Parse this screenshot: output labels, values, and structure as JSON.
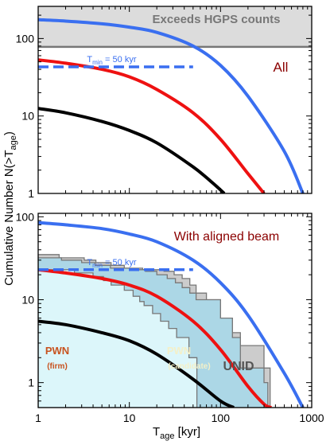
{
  "figure": {
    "ylabel": "Cumulative Number N(>T",
    "ylabel_sub": "age",
    "ylabel_tail": ")",
    "xlabel": "T",
    "xlabel_sub": "age",
    "xlabel_tail": " [kyr]"
  },
  "colors": {
    "blue": "#3a6ff0",
    "red": "#ee1111",
    "black": "#000000",
    "gray_band": "#dcdcdc",
    "gray_line": "#777777",
    "pwn_firm_fill": "#dcf6fa",
    "pwn_cand_fill": "#acd7e6",
    "unid_fill": "#cccccc",
    "text_dark_red": "#8b0000",
    "text_orange": "#c8521e",
    "text_pale": "#f4f0c8"
  },
  "chart_data": [
    {
      "type": "line",
      "panel": "top",
      "annotation_main": "All",
      "xscale": "log",
      "yscale": "log",
      "xlim": [
        1,
        1000
      ],
      "ylim": [
        1,
        260
      ],
      "x_ticks": [],
      "y_ticks": [
        {
          "value": 1,
          "label": "1"
        },
        {
          "value": 10,
          "label": "10"
        },
        {
          "value": 100,
          "label": "100"
        }
      ],
      "hgps": {
        "value": 78,
        "label": "Exceeds HGPS counts"
      },
      "tmin": {
        "label_main": "T",
        "label_sub": "min",
        "label_tail": " = 50 kyr",
        "x_end": 50,
        "y": 43
      },
      "series": [
        {
          "color": "blue",
          "x": [
            1,
            2,
            5,
            10,
            20,
            50,
            100,
            200,
            500,
            800
          ],
          "y": [
            175,
            168,
            155,
            140,
            120,
            80,
            45,
            18,
            3.5,
            1
          ]
        },
        {
          "color": "red",
          "x": [
            1,
            2,
            5,
            10,
            20,
            50,
            100,
            200,
            300
          ],
          "y": [
            53,
            48,
            40,
            32,
            22,
            11,
            5,
            1.8,
            1
          ]
        },
        {
          "color": "black",
          "x": [
            1,
            2,
            5,
            10,
            20,
            50,
            80,
            110
          ],
          "y": [
            12.5,
            11,
            8.5,
            6.5,
            4.5,
            2.2,
            1.4,
            1
          ]
        }
      ]
    },
    {
      "type": "line",
      "panel": "bottom",
      "annotation_main": "With aligned beam",
      "xscale": "log",
      "yscale": "log",
      "xlim": [
        1,
        1000
      ],
      "ylim": [
        0.5,
        110
      ],
      "x_ticks": [
        {
          "value": 1,
          "label": "1"
        },
        {
          "value": 10,
          "label": "10"
        },
        {
          "value": 100,
          "label": "100"
        },
        {
          "value": 1000,
          "label": "1000"
        }
      ],
      "y_ticks": [
        {
          "value": 1,
          "label": "1"
        },
        {
          "value": 10,
          "label": "10"
        },
        {
          "value": 100,
          "label": "100"
        }
      ],
      "tmin": {
        "label_main": "T",
        "label_sub": "min",
        "label_tail": " = 50 kyr",
        "x_end": 50,
        "y": 23
      },
      "regions": {
        "pwn_firm": {
          "label_main": "PWN",
          "label_sub": "(firm)"
        },
        "pwn_candidate": {
          "label_main": "PWN",
          "label_sub": "(candidate)"
        },
        "unid": {
          "label": "UNID"
        }
      },
      "series": [
        {
          "color": "blue",
          "x": [
            1,
            2,
            5,
            10,
            20,
            50,
            100,
            200,
            500,
            800
          ],
          "y": [
            85,
            80,
            72,
            62,
            50,
            30,
            16,
            6.5,
            1.3,
            0.5
          ]
        },
        {
          "color": "red",
          "x": [
            1,
            2,
            5,
            10,
            20,
            50,
            100,
            200,
            300,
            360
          ],
          "y": [
            23,
            21,
            18,
            15,
            11,
            5.5,
            2.5,
            0.9,
            0.55,
            0.5
          ]
        },
        {
          "color": "black",
          "x": [
            1,
            2,
            5,
            10,
            20,
            50,
            100,
            140
          ],
          "y": [
            5.5,
            5,
            4,
            3.2,
            2.2,
            1.1,
            0.6,
            0.5
          ]
        }
      ]
    }
  ]
}
